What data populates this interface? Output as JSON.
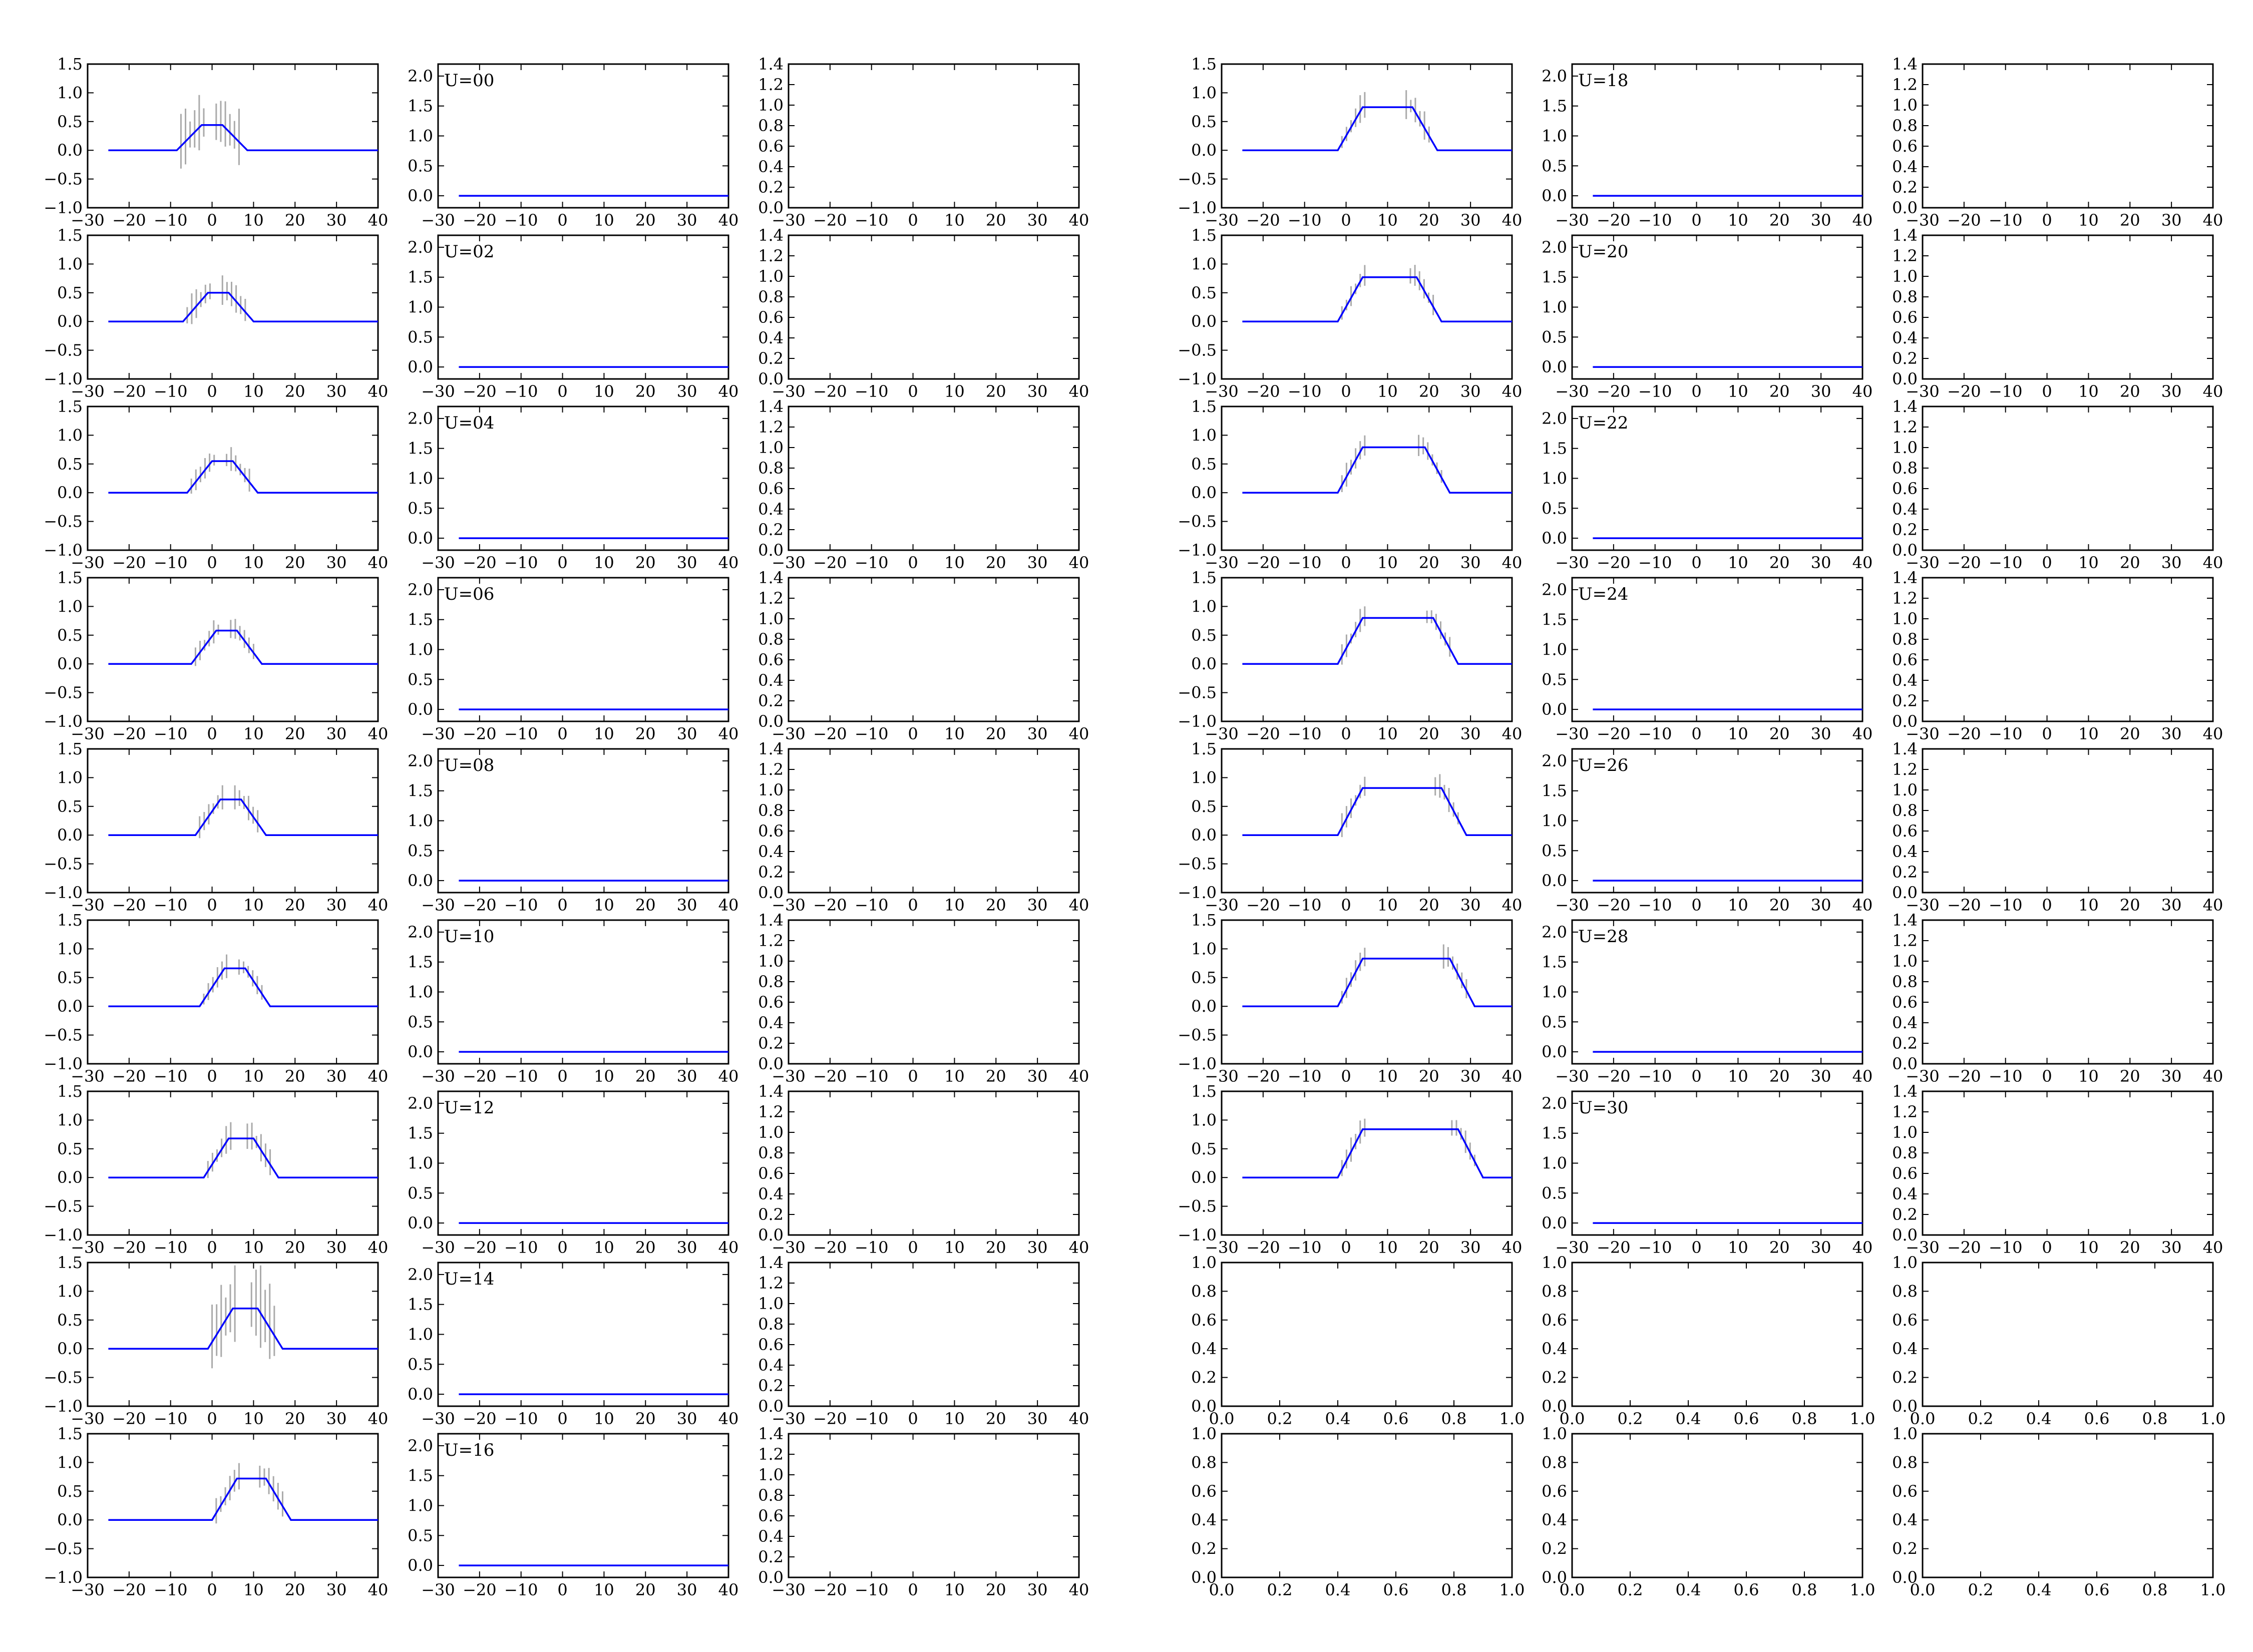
{
  "colors": {
    "frame": "#000000",
    "primary_line": "#0000ff",
    "secondary_line": "#aaaaaa",
    "background": "#ffffff"
  },
  "chart_data": {
    "type": "line",
    "layout": "grid of 6 column-panels by 9 rows, two blocks of 3 columns",
    "panel_types": {
      "profile": {
        "xlim": [
          -30,
          40
        ],
        "ylim": [
          -1.0,
          1.5
        ],
        "xticks": [
          -30,
          -20,
          -10,
          0,
          10,
          20,
          30,
          40
        ],
        "yticks": [
          -1.0,
          -0.5,
          0.0,
          0.5,
          1.0,
          1.5
        ],
        "x_tick_labels": [
          "−30",
          "−20",
          "−10",
          "0",
          "10",
          "20",
          "30",
          "40"
        ],
        "y_tick_labels": [
          "−1.0",
          "−0.5",
          "0.0",
          "0.5",
          "1.0",
          "1.5"
        ]
      },
      "level": {
        "xlim": [
          -30,
          40
        ],
        "ylim": [
          -0.2,
          2.2
        ],
        "xticks": [
          -30,
          -20,
          -10,
          0,
          10,
          20,
          30,
          40
        ],
        "yticks": [
          0.0,
          0.5,
          1.0,
          1.5,
          2.0
        ],
        "x_tick_labels": [
          "−30",
          "−20",
          "−10",
          "0",
          "10",
          "20",
          "30",
          "40"
        ],
        "y_tick_labels": [
          "0.0",
          "0.5",
          "1.0",
          "1.5",
          "2.0"
        ]
      },
      "empty": {
        "xlim": [
          -30,
          40
        ],
        "ylim": [
          0.0,
          1.4
        ],
        "xticks": [
          -30,
          -20,
          -10,
          0,
          10,
          20,
          30,
          40
        ],
        "yticks": [
          0.0,
          0.2,
          0.4,
          0.6,
          0.8,
          1.0,
          1.2,
          1.4
        ],
        "x_tick_labels": [
          "−30",
          "−20",
          "−10",
          "0",
          "10",
          "20",
          "30",
          "40"
        ],
        "y_tick_labels": [
          "0.0",
          "0.2",
          "0.4",
          "0.6",
          "0.8",
          "1.0",
          "1.2",
          "1.4"
        ]
      },
      "blank": {
        "xlim": [
          0.0,
          1.0
        ],
        "ylim": [
          0.0,
          1.0
        ],
        "xticks": [
          0.0,
          0.2,
          0.4,
          0.6,
          0.8,
          1.0
        ],
        "yticks": [
          0.0,
          0.2,
          0.4,
          0.6,
          0.8,
          1.0
        ],
        "x_tick_labels": [
          "0.0",
          "0.2",
          "0.4",
          "0.6",
          "0.8",
          "1.0"
        ],
        "y_tick_labels": [
          "0.0",
          "0.2",
          "0.4",
          "0.6",
          "0.8",
          "1.0"
        ]
      }
    },
    "profile_rows": [
      {
        "u_label": "U=00",
        "plateau_start": -2.5,
        "plateau_end": 2.5,
        "height": 0.44,
        "noise_amp": 0.6
      },
      {
        "u_label": "U=02",
        "plateau_start": -1,
        "plateau_end": 4,
        "height": 0.5,
        "noise_amp": 0.35
      },
      {
        "u_label": "U=04",
        "plateau_start": 0,
        "plateau_end": 5,
        "height": 0.55,
        "noise_amp": 0.25
      },
      {
        "u_label": "U=06",
        "plateau_start": 1,
        "plateau_end": 6,
        "height": 0.58,
        "noise_amp": 0.25
      },
      {
        "u_label": "U=08",
        "plateau_start": 2,
        "plateau_end": 7,
        "height": 0.62,
        "noise_amp": 0.25
      },
      {
        "u_label": "U=10",
        "plateau_start": 3,
        "plateau_end": 8,
        "height": 0.66,
        "noise_amp": 0.25
      },
      {
        "u_label": "U=12",
        "plateau_start": 4,
        "plateau_end": 10,
        "height": 0.68,
        "noise_amp": 0.3
      },
      {
        "u_label": "U=14",
        "plateau_start": 5,
        "plateau_end": 11,
        "height": 0.7,
        "noise_amp": 0.9
      },
      {
        "u_label": "U=16",
        "plateau_start": 6,
        "plateau_end": 13,
        "height": 0.72,
        "noise_amp": 0.3
      },
      {
        "u_label": "U=18",
        "plateau_start": 4,
        "plateau_end": 16,
        "height": 0.75,
        "noise_amp": 0.3
      },
      {
        "u_label": "U=20",
        "plateau_start": 4,
        "plateau_end": 17,
        "height": 0.77,
        "noise_amp": 0.25
      },
      {
        "u_label": "U=22",
        "plateau_start": 4,
        "plateau_end": 19,
        "height": 0.79,
        "noise_amp": 0.25
      },
      {
        "u_label": "U=24",
        "plateau_start": 4,
        "plateau_end": 21,
        "height": 0.8,
        "noise_amp": 0.25
      },
      {
        "u_label": "U=26",
        "plateau_start": 4,
        "plateau_end": 23,
        "height": 0.82,
        "noise_amp": 0.25
      },
      {
        "u_label": "U=28",
        "plateau_start": 4,
        "plateau_end": 25,
        "height": 0.83,
        "noise_amp": 0.25
      },
      {
        "u_label": "U=30",
        "plateau_start": 4,
        "plateau_end": 27,
        "height": 0.84,
        "noise_amp": 0.25
      }
    ],
    "level_line_value": 0.0,
    "profile_curve_x_range": [
      -25,
      40
    ],
    "level_line_x_range": [
      -25,
      40
    ]
  }
}
